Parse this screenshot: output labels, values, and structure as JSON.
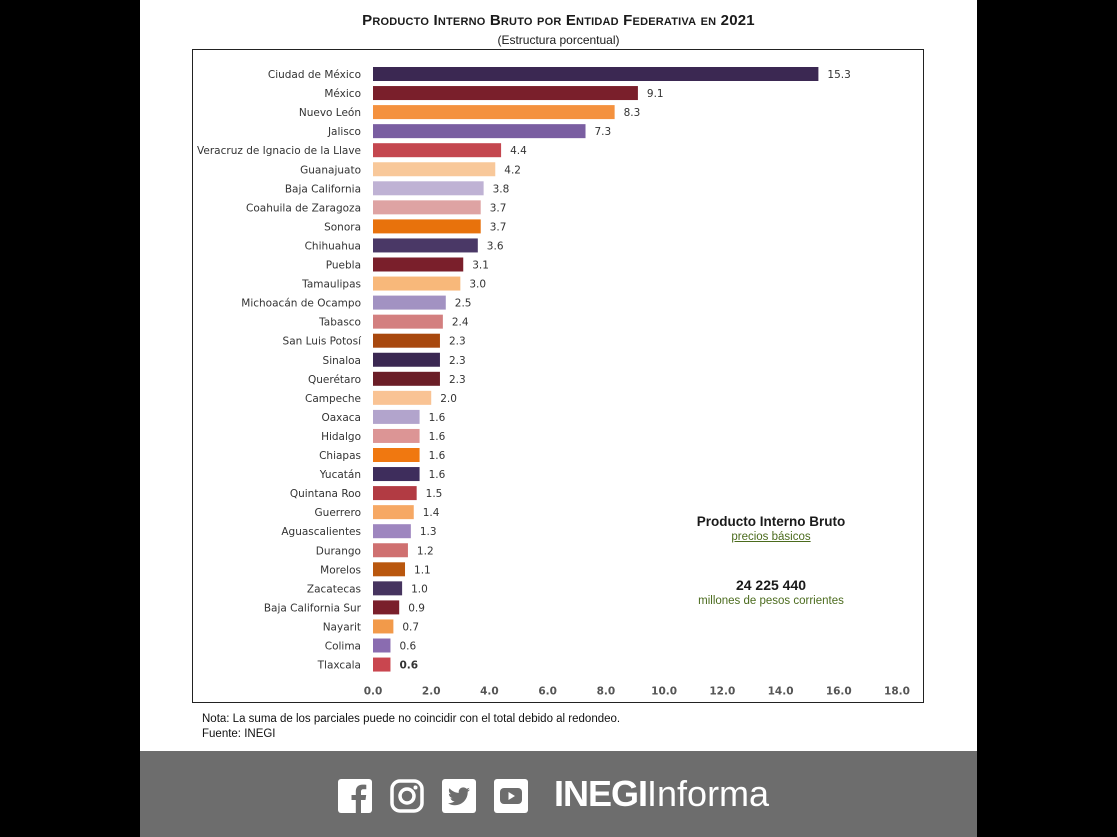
{
  "header": {
    "title": "Producto Interno Bruto por Entidad Federativa en 2021",
    "subtitle": "(Estructura porcentual)"
  },
  "chart_data": {
    "type": "bar",
    "orientation": "horizontal",
    "title": "Producto Interno Bruto por Entidad Federativa en 2021",
    "subtitle": "(Estructura porcentual)",
    "xlabel": "",
    "ylabel": "",
    "xlim": [
      0,
      18
    ],
    "ticks": [
      "0.0",
      "2.0",
      "4.0",
      "6.0",
      "8.0",
      "10.0",
      "12.0",
      "14.0",
      "16.0",
      "18.0"
    ],
    "grid": false,
    "categories": [
      "Ciudad de México",
      "México",
      "Nuevo León",
      "Jalisco",
      "Veracruz de Ignacio de la Llave",
      "Guanajuato",
      "Baja California",
      "Coahuila de Zaragoza",
      "Sonora",
      "Chihuahua",
      "Puebla",
      "Tamaulipas",
      "Michoacán de Ocampo",
      "Tabasco",
      "San Luis Potosí",
      "Sinaloa",
      "Querétaro",
      "Campeche",
      "Oaxaca",
      "Hidalgo",
      "Chiapas",
      "Yucatán",
      "Quintana Roo",
      "Guerrero",
      "Aguascalientes",
      "Durango",
      "Morelos",
      "Zacatecas",
      "Baja California Sur",
      "Nayarit",
      "Colima",
      "Tlaxcala"
    ],
    "values": [
      15.3,
      9.1,
      8.3,
      7.3,
      4.4,
      4.2,
      3.8,
      3.7,
      3.7,
      3.6,
      3.1,
      3.0,
      2.5,
      2.4,
      2.3,
      2.3,
      2.3,
      2.0,
      1.6,
      1.6,
      1.6,
      1.6,
      1.5,
      1.4,
      1.3,
      1.2,
      1.1,
      1.0,
      0.9,
      0.7,
      0.6,
      0.6
    ],
    "value_labels": [
      "15.3",
      "9.1",
      "8.3",
      "7.3",
      "4.4",
      "4.2",
      "3.8",
      "3.7",
      "3.7",
      "3.6",
      "3.1",
      "3.0",
      "2.5",
      "2.4",
      "2.3",
      "2.3",
      "2.3",
      "2.0",
      "1.6",
      "1.6",
      "1.6",
      "1.6",
      "1.5",
      "1.4",
      "1.3",
      "1.2",
      "1.1",
      "1.0",
      "0.9",
      "0.7",
      "0.6",
      "0.6"
    ],
    "colors": [
      "#3b2852",
      "#7a1f2b",
      "#f4913e",
      "#7a5ea1",
      "#c4474f",
      "#f8c89a",
      "#bfb2d4",
      "#dea3a3",
      "#e8720c",
      "#4a3866",
      "#7a1f2b",
      "#f8b87a",
      "#a292c2",
      "#d37f7f",
      "#a8480e",
      "#3b2852",
      "#6b1e27",
      "#f9c394",
      "#b2a4cc",
      "#dc9595",
      "#f07810",
      "#3e2d5c",
      "#b23b43",
      "#f6a864",
      "#9e86bf",
      "#cf7070",
      "#b9570e",
      "#46345f",
      "#7a1f2b",
      "#f29a4a",
      "#8a6cb0",
      "#c9464f"
    ]
  },
  "summary": {
    "title": "Producto Interno Bruto",
    "subtitle": "precios básicos",
    "value": "24 225 440",
    "units": "millones de pesos corrientes"
  },
  "note": {
    "line1": "Nota: La suma de los parciales puede no coincidir con el total debido al redondeo.",
    "line2": "Fuente: INEGI"
  },
  "footer": {
    "icons": [
      "facebook-icon",
      "instagram-icon",
      "twitter-icon",
      "youtube-icon"
    ],
    "brand_bold": "INEGI",
    "brand_light": "Informa",
    "background": "#6d6d6d"
  }
}
